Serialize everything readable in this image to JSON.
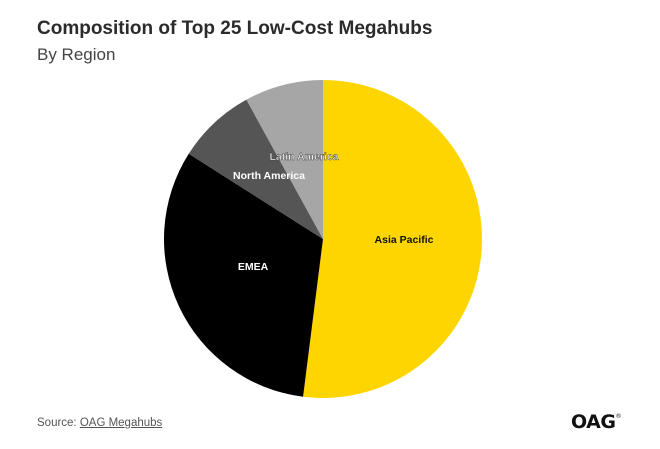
{
  "header": {
    "title": "Composition of Top 25 Low-Cost Megahubs",
    "subtitle": "By Region"
  },
  "footer": {
    "source_prefix": "Source: ",
    "source_link": "OAG Megahubs",
    "logo": "OAG",
    "logo_mark": "®"
  },
  "chart_data": {
    "type": "pie",
    "title": "Composition of Top 25 Low-Cost Megahubs",
    "subtitle": "By Region",
    "start_angle_deg": 0,
    "direction": "clockwise",
    "slices": [
      {
        "label": "Asia Pacific",
        "value": 52,
        "color": "#FFD500"
      },
      {
        "label": "EMEA",
        "value": 32,
        "color": "#000000"
      },
      {
        "label": "North America",
        "value": 8,
        "color": "#555555"
      },
      {
        "label": "Latin America",
        "value": 8,
        "color": "#A6A6A6"
      }
    ]
  }
}
